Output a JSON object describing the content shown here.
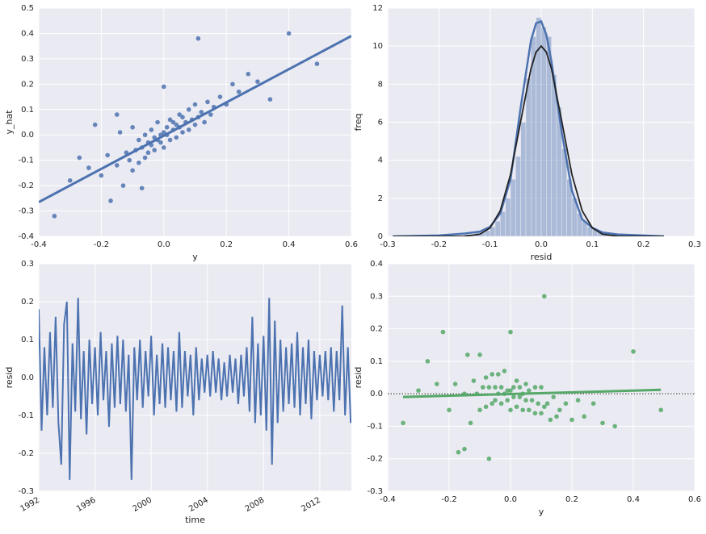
{
  "chart_data": [
    {
      "type": "scatter",
      "x_label": "y",
      "y_label": "y_hat",
      "xlim": [
        -0.4,
        0.6
      ],
      "ylim": [
        -0.4,
        0.5
      ],
      "xticks": [
        -0.4,
        -0.2,
        {
          "value": 0,
          "label": "0.0"
        },
        0.2,
        0.4,
        0.6
      ],
      "yticks": [
        -0.4,
        -0.3,
        -0.2,
        -0.1,
        {
          "value": 0,
          "label": "0.0"
        },
        0.1,
        0.2,
        0.3,
        0.4,
        0.5
      ],
      "grid": true,
      "color": "#4c72b0",
      "x": [
        -0.35,
        -0.3,
        -0.27,
        -0.24,
        -0.22,
        -0.2,
        -0.18,
        -0.17,
        -0.15,
        -0.14,
        -0.13,
        -0.12,
        -0.11,
        -0.1,
        -0.1,
        -0.09,
        -0.08,
        -0.08,
        -0.07,
        -0.06,
        -0.06,
        -0.05,
        -0.05,
        -0.04,
        -0.04,
        -0.03,
        -0.03,
        -0.02,
        -0.02,
        -0.01,
        -0.01,
        0,
        0,
        0.01,
        0.01,
        0.02,
        0.02,
        0.03,
        0.03,
        0.04,
        0.04,
        0.05,
        0.05,
        0.06,
        0.06,
        0.07,
        0.08,
        0.08,
        0.09,
        0.1,
        0.1,
        0.11,
        0.12,
        0.13,
        0.14,
        0.15,
        0.16,
        0.18,
        0.2,
        0.22,
        0.24,
        0.27,
        0.3,
        0.34,
        0.4,
        0.49,
        0.11,
        -0.15,
        0,
        -0.07
      ],
      "values": [
        -0.32,
        -0.18,
        -0.09,
        -0.13,
        0.04,
        -0.16,
        -0.08,
        -0.26,
        -0.12,
        0.01,
        -0.2,
        -0.07,
        -0.1,
        0.03,
        -0.14,
        -0.06,
        -0.02,
        -0.11,
        -0.05,
        0,
        -0.09,
        -0.03,
        -0.07,
        0.02,
        -0.04,
        -0.01,
        -0.06,
        0.05,
        -0.02,
        0,
        -0.03,
        0.01,
        -0.05,
        0.03,
        0,
        0.06,
        -0.02,
        0.02,
        0.05,
        0.04,
        -0.01,
        0.08,
        0.03,
        0.01,
        0.07,
        0.05,
        0.1,
        0.02,
        0.06,
        0.12,
        0.04,
        0.07,
        0.09,
        0.05,
        0.13,
        0.08,
        0.11,
        0.15,
        0.12,
        0.2,
        0.17,
        0.24,
        0.21,
        0.14,
        0.4,
        0.28,
        0.38,
        0.08,
        0.19,
        -0.21
      ],
      "fit_line": {
        "x": [
          -0.4,
          0.6
        ],
        "y": [
          -0.265,
          0.39
        ]
      }
    },
    {
      "type": "histogram",
      "x_label": "resid",
      "y_label": "freq",
      "xlim": [
        -0.3,
        0.3
      ],
      "ylim": [
        0,
        12
      ],
      "xticks": [
        -0.3,
        -0.2,
        -0.1,
        {
          "value": 0,
          "label": "0.0"
        },
        0.1,
        0.2,
        0.3
      ],
      "yticks": [
        0,
        2,
        4,
        6,
        8,
        10,
        12
      ],
      "grid": true,
      "color": "#4c72b0",
      "bins": [
        -0.15,
        -0.14,
        -0.13,
        -0.12,
        -0.11,
        -0.1,
        -0.09,
        -0.08,
        -0.07,
        -0.06,
        -0.05,
        -0.04,
        -0.03,
        -0.02,
        -0.01,
        0,
        0.01,
        0.02,
        0.03,
        0.04,
        0.05,
        0.06,
        0.07,
        0.08,
        0.09,
        0.1,
        0.11,
        0.12,
        0.13,
        0.14,
        0.15
      ],
      "values": [
        0.1,
        0.1,
        0.2,
        0.2,
        0.3,
        0.5,
        0.8,
        1.3,
        2.0,
        3.0,
        4.2,
        6.0,
        8.3,
        10.5,
        11.5,
        11.0,
        10.5,
        8.5,
        6.8,
        4.6,
        3.0,
        2.0,
        1.2,
        0.8,
        0.5,
        0.4,
        0.3,
        0.2,
        0.1,
        0.1
      ],
      "kde": {
        "color": "#4c72b0",
        "x": [
          -0.29,
          -0.25,
          -0.2,
          -0.15,
          -0.12,
          -0.1,
          -0.08,
          -0.06,
          -0.04,
          -0.02,
          -0.01,
          0,
          0.01,
          0.02,
          0.04,
          0.06,
          0.08,
          0.1,
          0.12,
          0.15,
          0.2,
          0.24
        ],
        "y": [
          0,
          0.02,
          0.05,
          0.15,
          0.25,
          0.5,
          1.2,
          3.0,
          6.8,
          10.3,
          11.2,
          11.3,
          10.6,
          9.2,
          5.5,
          2.4,
          0.9,
          0.45,
          0.2,
          0.1,
          0.05,
          0
        ]
      },
      "normal_fit": {
        "color": "#222222",
        "x": [
          -0.29,
          -0.2,
          -0.15,
          -0.12,
          -0.1,
          -0.08,
          -0.06,
          -0.04,
          -0.02,
          -0.01,
          0,
          0.01,
          0.02,
          0.04,
          0.06,
          0.08,
          0.1,
          0.12,
          0.15,
          0.2,
          0.24
        ],
        "y": [
          0,
          0,
          0.01,
          0.11,
          0.44,
          1.35,
          3.25,
          6.07,
          8.82,
          9.69,
          10,
          9.69,
          8.82,
          6.07,
          3.25,
          1.35,
          0.44,
          0.11,
          0.01,
          0,
          0
        ]
      }
    },
    {
      "type": "line",
      "x_label": "time",
      "y_label": "resid",
      "xlim": [
        1992,
        2014.25
      ],
      "ylim": [
        -0.3,
        0.3
      ],
      "xticks": [
        1992,
        1996,
        2000,
        2004,
        2008,
        2012
      ],
      "yticks": [
        -0.3,
        -0.2,
        -0.1,
        {
          "value": 0,
          "label": "0.0"
        },
        0.1,
        0.2,
        0.3
      ],
      "grid": true,
      "color": "#4c72b0",
      "x": [
        1992,
        1992.2,
        1992.4,
        1992.6,
        1992.8,
        1993,
        1993.2,
        1993.4,
        1993.6,
        1993.8,
        1994,
        1994.2,
        1994.4,
        1994.6,
        1994.8,
        1995,
        1995.2,
        1995.4,
        1995.6,
        1995.8,
        1996,
        1996.2,
        1996.4,
        1996.6,
        1996.8,
        1997,
        1997.2,
        1997.4,
        1997.6,
        1997.8,
        1998,
        1998.2,
        1998.4,
        1998.6,
        1998.8,
        1999,
        1999.2,
        1999.4,
        1999.6,
        1999.8,
        2000,
        2000.2,
        2000.4,
        2000.6,
        2000.8,
        2001,
        2001.2,
        2001.4,
        2001.6,
        2001.8,
        2002,
        2002.2,
        2002.4,
        2002.6,
        2002.8,
        2003,
        2003.2,
        2003.4,
        2003.6,
        2003.8,
        2004,
        2004.2,
        2004.4,
        2004.6,
        2004.8,
        2005,
        2005.2,
        2005.4,
        2005.6,
        2005.8,
        2006,
        2006.2,
        2006.4,
        2006.6,
        2006.8,
        2007,
        2007.2,
        2007.4,
        2007.6,
        2007.8,
        2008,
        2008.2,
        2008.4,
        2008.6,
        2008.8,
        2009,
        2009.2,
        2009.4,
        2009.6,
        2009.8,
        2010,
        2010.2,
        2010.4,
        2010.6,
        2010.8,
        2011,
        2011.2,
        2011.4,
        2011.6,
        2011.8,
        2012,
        2012.2,
        2012.4,
        2012.6,
        2012.8,
        2013,
        2013.2,
        2013.4,
        2013.6,
        2013.8,
        2014,
        2014.2
      ],
      "values": [
        0.18,
        -0.14,
        0.08,
        -0.1,
        0.12,
        -0.08,
        0.16,
        -0.12,
        -0.23,
        0.14,
        0.2,
        -0.27,
        0.09,
        -0.09,
        0.21,
        -0.11,
        0.07,
        -0.15,
        0.1,
        -0.07,
        0.08,
        -0.1,
        0.12,
        -0.06,
        0.07,
        -0.13,
        0.09,
        -0.08,
        0.11,
        -0.07,
        0.1,
        -0.09,
        0.06,
        -0.27,
        0.08,
        -0.06,
        0.1,
        -0.08,
        0.07,
        -0.05,
        0.11,
        -0.1,
        0.06,
        -0.07,
        0.09,
        -0.08,
        0.08,
        -0.06,
        0.07,
        -0.09,
        0.12,
        -0.08,
        0.07,
        -0.05,
        0.06,
        -0.1,
        0.08,
        -0.06,
        0.05,
        -0.04,
        0.06,
        -0.05,
        0.07,
        -0.04,
        0.05,
        -0.06,
        0.04,
        -0.05,
        0.06,
        -0.04,
        0.05,
        -0.07,
        0.06,
        -0.05,
        0.08,
        -0.09,
        0.16,
        -0.12,
        0.09,
        -0.1,
        0.11,
        -0.14,
        0.21,
        -0.23,
        0.15,
        -0.12,
        0.1,
        -0.09,
        0.08,
        -0.07,
        0.09,
        -0.08,
        0.12,
        -0.1,
        0.08,
        -0.07,
        0.1,
        -0.11,
        0.07,
        -0.06,
        0.06,
        -0.05,
        0.07,
        -0.06,
        0.08,
        -0.09,
        0.07,
        -0.06,
        0.19,
        -0.1,
        0.08,
        -0.12
      ]
    },
    {
      "type": "scatter",
      "x_label": "y",
      "y_label": "resid",
      "xlim": [
        -0.4,
        0.6
      ],
      "ylim": [
        -0.3,
        0.4
      ],
      "xticks": [
        -0.4,
        -0.2,
        {
          "value": 0,
          "label": "0.0"
        },
        0.2,
        0.4,
        0.6
      ],
      "yticks": [
        -0.3,
        -0.2,
        -0.1,
        {
          "value": 0,
          "label": "0.0"
        },
        0.1,
        0.2,
        0.3,
        0.4
      ],
      "grid": true,
      "color": "#55a868",
      "zero_line": true,
      "x": [
        -0.35,
        -0.3,
        -0.27,
        -0.24,
        -0.22,
        -0.2,
        -0.18,
        -0.17,
        -0.15,
        -0.14,
        -0.13,
        -0.12,
        -0.11,
        -0.1,
        -0.1,
        -0.09,
        -0.08,
        -0.08,
        -0.07,
        -0.06,
        -0.06,
        -0.05,
        -0.05,
        -0.04,
        -0.04,
        -0.03,
        -0.03,
        -0.02,
        -0.02,
        -0.01,
        -0.01,
        0,
        0,
        0.01,
        0.01,
        0.02,
        0.02,
        0.03,
        0.03,
        0.04,
        0.04,
        0.05,
        0.05,
        0.06,
        0.06,
        0.07,
        0.08,
        0.08,
        0.09,
        0.1,
        0.1,
        0.11,
        0.12,
        0.13,
        0.14,
        0.15,
        0.16,
        0.18,
        0.2,
        0.22,
        0.24,
        0.27,
        0.3,
        0.34,
        0.4,
        0.49,
        0.11,
        -0.15,
        0,
        -0.07
      ],
      "values": [
        -0.09,
        0.01,
        0.1,
        0.03,
        0.19,
        -0.05,
        0.03,
        -0.18,
        0,
        0.12,
        -0.09,
        0.04,
        0,
        0.12,
        -0.05,
        0.02,
        0.05,
        -0.04,
        0.02,
        0.06,
        -0.03,
        0.02,
        -0.02,
        0.06,
        0,
        0.02,
        -0.03,
        0.07,
        0,
        0.01,
        -0.02,
        0.01,
        -0.05,
        0.02,
        -0.01,
        0.04,
        -0.04,
        -0.01,
        0.02,
        0,
        -0.05,
        0.03,
        -0.02,
        -0.05,
        0.01,
        -0.02,
        0.02,
        -0.06,
        -0.03,
        0.02,
        -0.06,
        -0.04,
        -0.03,
        -0.08,
        -0.01,
        -0.07,
        -0.05,
        -0.03,
        -0.08,
        -0.02,
        -0.07,
        -0.03,
        -0.09,
        -0.1,
        0.13,
        -0.05,
        0.3,
        -0.17,
        0.19,
        -0.2
      ],
      "fit_line": {
        "x": [
          -0.35,
          0.49
        ],
        "y": [
          -0.01,
          0.012
        ]
      }
    }
  ]
}
